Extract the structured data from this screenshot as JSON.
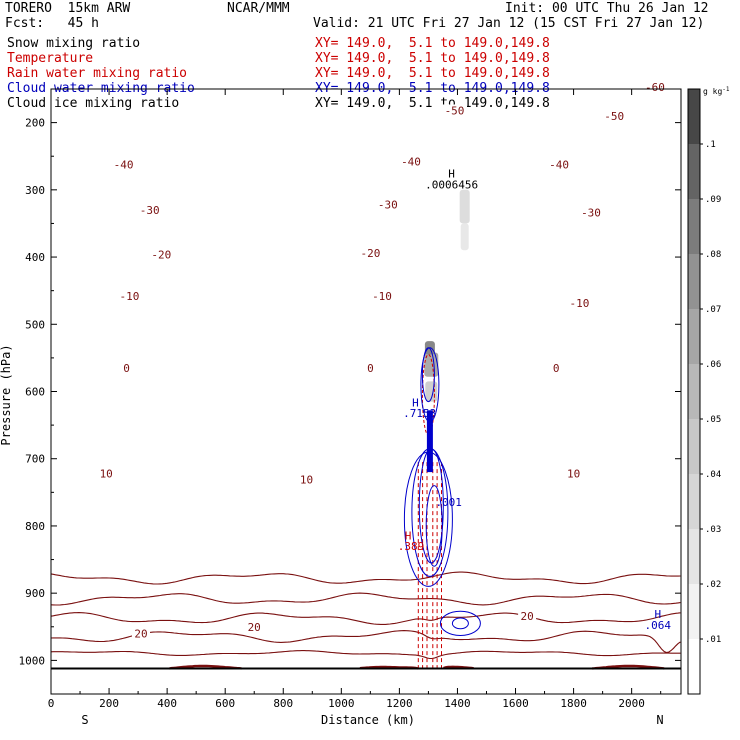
{
  "header": {
    "model": "TORERO  15km ARW",
    "org": "NCAR/MMM",
    "init": "Init: 00 UTC Thu 26 Jan 12",
    "fcst": "Fcst:   45 h",
    "valid": "Valid: 21 UTC Fri 27 Jan 12 (15 CST Fri 27 Jan 12)"
  },
  "fields": [
    {
      "name": "Snow mixing ratio",
      "xy": "XY= 149.0,  5.1 to 149.0,149.8",
      "color": "#000000"
    },
    {
      "name": "Temperature",
      "xy": "XY= 149.0,  5.1 to 149.0,149.8",
      "color": "#cc0000"
    },
    {
      "name": "Rain water mixing ratio",
      "xy": "XY= 149.0,  5.1 to 149.0,149.8",
      "color": "#cc0000"
    },
    {
      "name": "Cloud water mixing ratio",
      "xy": "XY= 149.0,  5.1 to 149.0,149.8",
      "color": "#0000bb"
    },
    {
      "name": "Cloud ice mixing ratio",
      "xy": "XY= 149.0,  5.1 to 149.0,149.8",
      "color": "#000000"
    }
  ],
  "chart_data": {
    "type": "cross-section",
    "xlabel": "Distance (km)",
    "ylabel": "Pressure (hPa)",
    "xlim": [
      0,
      2170
    ],
    "ylim": [
      1050,
      150
    ],
    "x_ticks": [
      0,
      200,
      400,
      600,
      800,
      1000,
      1200,
      1400,
      1600,
      1800,
      2000
    ],
    "y_ticks": [
      200,
      300,
      400,
      500,
      600,
      700,
      800,
      900,
      1000
    ],
    "x_end_labels": {
      "left": "S",
      "right": "N"
    },
    "colorbar": {
      "unit": "g kg",
      "unit_exp": "-1",
      "ticks": [
        ".01",
        ".02",
        ".03",
        ".04",
        ".05",
        ".06",
        ".07",
        ".08",
        ".09",
        ".1"
      ],
      "tick_values": [
        0.01,
        0.02,
        0.03,
        0.04,
        0.05,
        0.06,
        0.07,
        0.08,
        0.09,
        0.1
      ],
      "max": 0.11,
      "colors": [
        "#ffffff",
        "#f2f2f2",
        "#e4e4e4",
        "#d6d6d6",
        "#c8c8c8",
        "#b8b8b8",
        "#a6a6a6",
        "#929292",
        "#7c7c7c",
        "#646464",
        "#474747"
      ]
    },
    "temperature_contours": [
      {
        "label": "-60",
        "p": 147,
        "label_x": 2080
      },
      {
        "label": "-50",
        "p": 182,
        "label_x": 1390
      },
      {
        "label": "-50",
        "p": 190,
        "label_x": 1940
      },
      {
        "label": "-40",
        "p": 262,
        "label_x": 250
      },
      {
        "label": "-40",
        "p": 258,
        "label_x": 1240
      },
      {
        "label": "-40",
        "p": 262,
        "label_x": 1750
      },
      {
        "label": "-30",
        "p": 330,
        "label_x": 340
      },
      {
        "label": "-30",
        "p": 322,
        "label_x": 1160
      },
      {
        "label": "-30",
        "p": 334,
        "label_x": 1860
      },
      {
        "label": "-20",
        "p": 396,
        "label_x": 380
      },
      {
        "label": "-20",
        "p": 394,
        "label_x": 1100
      },
      {
        "label": "-10",
        "p": 458,
        "label_x": 270
      },
      {
        "label": "-10",
        "p": 458,
        "label_x": 1140
      },
      {
        "label": "-10",
        "p": 468,
        "label_x": 1820
      },
      {
        "label": "0",
        "p": 565,
        "label_x": 260
      },
      {
        "label": "0",
        "p": 565,
        "label_x": 1100
      },
      {
        "label": "0",
        "p": 565,
        "label_x": 1740
      },
      {
        "label": "10",
        "p": 722,
        "label_x": 190
      },
      {
        "label": "10",
        "p": 731,
        "label_x": 880
      },
      {
        "label": "10",
        "p": 722,
        "label_x": 1800
      },
      {
        "label": "20",
        "p": 960,
        "label_x": 310
      },
      {
        "label": "20",
        "p": 950,
        "label_x": 700
      },
      {
        "label": "20",
        "p": 934,
        "label_x": 1640
      }
    ],
    "annotations": [
      {
        "text": "H",
        "x": 1380,
        "p": 282,
        "color": "#000000"
      },
      {
        "text": ".0006456",
        "x": 1380,
        "p": 298,
        "color": "#000000"
      },
      {
        "text": "H",
        "x": 1255,
        "p": 622,
        "color": "#0000bb"
      },
      {
        "text": ".7153",
        "x": 1270,
        "p": 638,
        "color": "#0000bb"
      },
      {
        "text": "H",
        "x": 1230,
        "p": 820,
        "color": "#cc0000"
      },
      {
        "text": ".389",
        "x": 1240,
        "p": 836,
        "color": "#cc0000"
      },
      {
        "text": ".001",
        "x": 1370,
        "p": 770,
        "color": "#0000bb"
      },
      {
        "text": "H",
        "x": 2090,
        "p": 937,
        "color": "#0000bb"
      },
      {
        "text": ".064",
        "x": 2090,
        "p": 953,
        "color": "#0000bb"
      }
    ]
  }
}
